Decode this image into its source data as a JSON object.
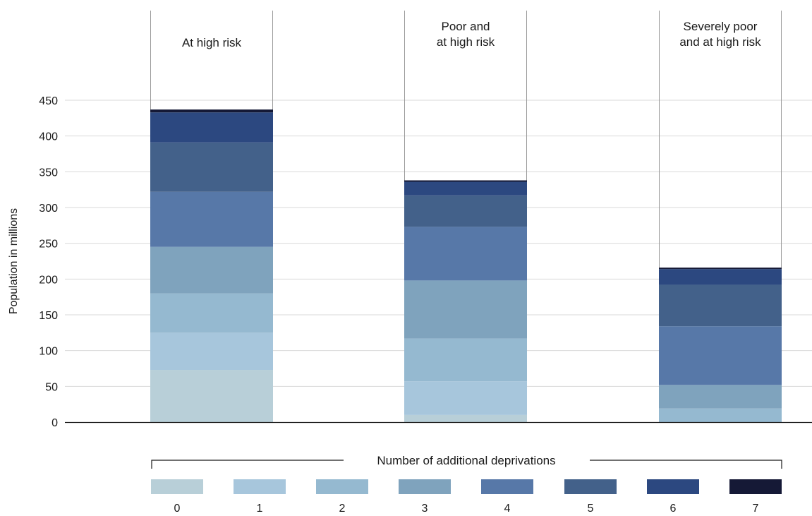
{
  "chart_data": {
    "type": "bar",
    "stacked": true,
    "categories": [
      "At high risk",
      "Poor and\nat high risk",
      "Severely poor\nand at high risk"
    ],
    "ylabel": "Population in millions",
    "ylim": [
      0,
      450
    ],
    "yticks": [
      "0",
      "50",
      "100",
      "150",
      "200",
      "250",
      "300",
      "350",
      "400",
      "450"
    ],
    "grid": true,
    "legend_title": "Number of additional deprivations",
    "legend_position": "bottom",
    "series": [
      {
        "name": "0",
        "color": "#b8cfd8",
        "values": [
          73,
          10,
          0
        ]
      },
      {
        "name": "1",
        "color": "#a7c6dc",
        "values": [
          52,
          47,
          0
        ]
      },
      {
        "name": "2",
        "color": "#95b9d0",
        "values": [
          55,
          60,
          19
        ]
      },
      {
        "name": "3",
        "color": "#7fa3bd",
        "values": [
          65,
          81,
          33
        ]
      },
      {
        "name": "4",
        "color": "#5778a8",
        "values": [
          77,
          75,
          82
        ]
      },
      {
        "name": "5",
        "color": "#43618a",
        "values": [
          69,
          44,
          58
        ]
      },
      {
        "name": "6",
        "color": "#2c4880",
        "values": [
          42,
          19,
          22
        ]
      },
      {
        "name": "7",
        "color": "#151936",
        "values": [
          4,
          2,
          2
        ]
      }
    ]
  }
}
